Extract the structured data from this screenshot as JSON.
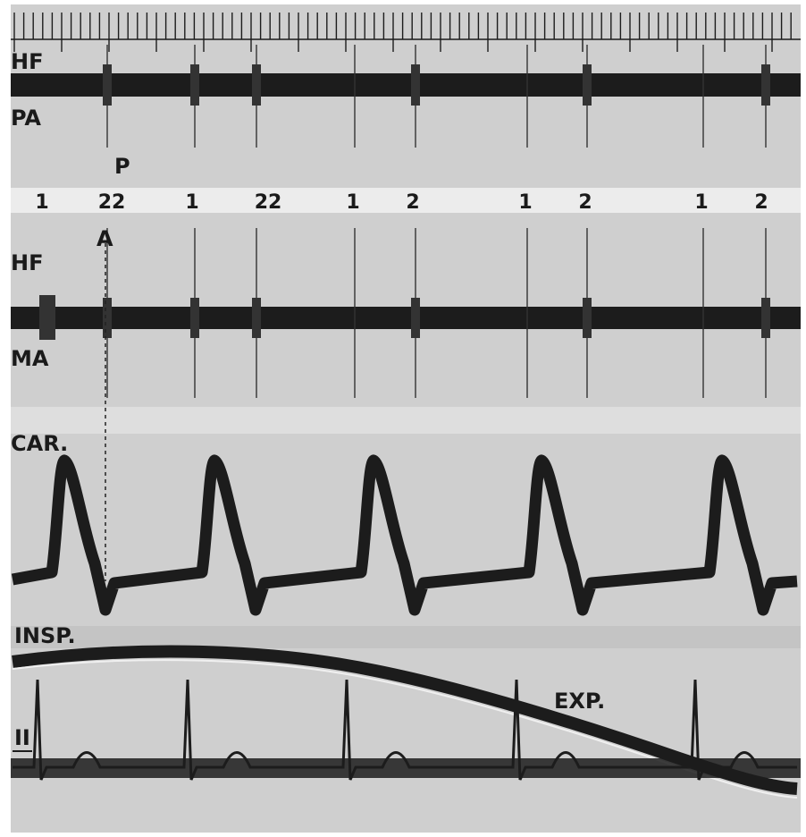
{
  "labels": {
    "hf_top": "HF",
    "pa": "PA",
    "p": "P",
    "a": "A",
    "hf_mid": "HF",
    "ma": "MA",
    "car": "CAR.",
    "insp": "INSP.",
    "exp": "EXP.",
    "lead": "II"
  },
  "sound_markers": [
    "1",
    "22",
    "1",
    "22",
    "1",
    "2",
    "1",
    "2",
    "1",
    "2"
  ]
}
